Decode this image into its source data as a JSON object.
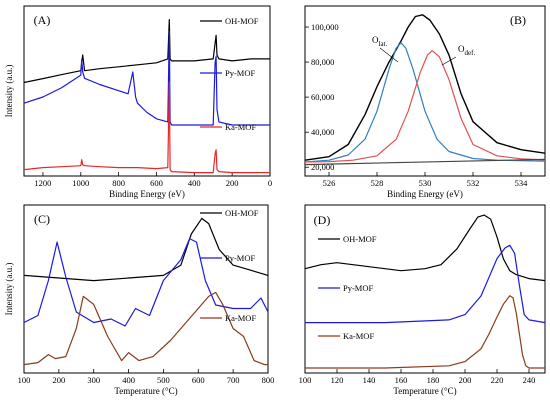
{
  "figure": {
    "colors": {
      "black": "#000000",
      "blue": "#1a1adf",
      "red": "#e8262a",
      "brown": "#8b3a1a",
      "fitblue": "#2f7fc1",
      "fitred": "#e25050",
      "baseline": "#444444"
    }
  },
  "chart_data": [
    {
      "panel": "(A)",
      "type": "line",
      "xlabel": "Binding Energy (eV)",
      "ylabel": "Intensity (a.u.)",
      "xlim": [
        1300,
        0
      ],
      "xticks": [
        "1200",
        "1000",
        "800",
        "600",
        "400",
        "200",
        "0"
      ],
      "xtick_values": [
        1200,
        1000,
        800,
        600,
        400,
        200,
        0
      ],
      "ylim": [
        0,
        10
      ],
      "legend_placement": "right of each curve",
      "series": [
        {
          "name": "OH-MOF",
          "color": "black",
          "x": [
            1300,
            1200,
            1100,
            1000,
            990,
            980,
            900,
            800,
            700,
            600,
            540,
            532,
            528,
            520,
            400,
            300,
            290,
            285,
            280,
            270,
            200,
            100,
            0
          ],
          "y": [
            8.3,
            8.4,
            8.5,
            8.6,
            9.0,
            8.6,
            8.65,
            8.7,
            8.75,
            8.8,
            8.9,
            9.9,
            8.9,
            8.85,
            8.85,
            8.9,
            9.3,
            9.5,
            9.0,
            8.9,
            8.85,
            8.9,
            8.9
          ]
        },
        {
          "name": "Py-MOF",
          "color": "blue",
          "x": [
            1300,
            1200,
            1100,
            1000,
            995,
            990,
            980,
            900,
            800,
            750,
            725,
            710,
            700,
            650,
            600,
            540,
            532,
            528,
            520,
            450,
            400,
            300,
            290,
            285,
            280,
            270,
            200,
            100,
            0
          ],
          "y": [
            5.6,
            5.8,
            6.1,
            6.5,
            7.0,
            6.6,
            6.4,
            6.2,
            6.0,
            5.9,
            6.6,
            5.8,
            5.6,
            5.3,
            5.1,
            5.0,
            7.9,
            5.0,
            4.9,
            4.9,
            4.9,
            4.9,
            6.9,
            7.1,
            5.4,
            5.0,
            4.9,
            4.9,
            4.9
          ]
        },
        {
          "name": "Ka-MOF",
          "color": "red",
          "x": [
            1300,
            1200,
            1100,
            1000,
            995,
            990,
            980,
            900,
            800,
            700,
            600,
            540,
            532,
            528,
            520,
            400,
            300,
            290,
            285,
            280,
            270,
            200,
            100,
            0
          ],
          "y": [
            2.6,
            2.7,
            2.75,
            2.8,
            3.1,
            2.85,
            2.8,
            2.75,
            2.7,
            2.7,
            2.65,
            2.7,
            7.0,
            2.6,
            2.5,
            2.45,
            2.45,
            3.4,
            3.6,
            2.6,
            2.5,
            2.45,
            2.45,
            2.45
          ]
        }
      ]
    },
    {
      "panel": "(B)",
      "type": "line",
      "xlabel": "Binding Energy (eV)",
      "xlim": [
        525,
        535
      ],
      "ylim": [
        15000,
        112000
      ],
      "xticks": [
        "526",
        "528",
        "530",
        "532",
        "534"
      ],
      "xtick_values": [
        526,
        528,
        530,
        532,
        534
      ],
      "yticks": [
        "20,000",
        "40,000",
        "60,000",
        "80,000",
        "100,000"
      ],
      "ytick_values": [
        20000,
        40000,
        60000,
        80000,
        100000
      ],
      "annotations": [
        {
          "text": "O",
          "sub": "lat."
        },
        {
          "text": "O",
          "sub": "def."
        }
      ],
      "series": [
        {
          "role": "envelope",
          "color": "black",
          "x": [
            525,
            526,
            526.8,
            527.5,
            528,
            528.5,
            529,
            529.3,
            529.6,
            529.9,
            530.2,
            530.6,
            531,
            531.5,
            532,
            533,
            534,
            535
          ],
          "y": [
            24000,
            26000,
            33000,
            50000,
            66000,
            80000,
            92000,
            100000,
            106000,
            107000,
            104000,
            96000,
            84000,
            62000,
            46000,
            34000,
            30000,
            28000
          ]
        },
        {
          "role": "O lat. fit",
          "color": "fitblue",
          "x": [
            525,
            526,
            526.8,
            527.5,
            528,
            528.5,
            528.8,
            529.0,
            529.2,
            529.5,
            530,
            530.5,
            531,
            532,
            533,
            535
          ],
          "y": [
            23000,
            24000,
            27000,
            36000,
            52000,
            76000,
            88000,
            91000,
            88000,
            76000,
            52000,
            36000,
            29000,
            25000,
            24000,
            23500
          ]
        },
        {
          "role": "O def. fit",
          "color": "fitred",
          "x": [
            525,
            526,
            527,
            528,
            528.8,
            529.3,
            529.8,
            530.1,
            530.3,
            530.6,
            531,
            531.5,
            532,
            533,
            534,
            535
          ],
          "y": [
            23000,
            23200,
            24000,
            26500,
            36000,
            52000,
            74000,
            84000,
            86500,
            83000,
            70000,
            48000,
            33000,
            26500,
            24800,
            24200
          ]
        },
        {
          "role": "baseline",
          "color": "baseline",
          "x": [
            525,
            535
          ],
          "y": [
            21500,
            24500
          ]
        }
      ]
    },
    {
      "panel": "(C)",
      "type": "line",
      "xlabel": "Temperature (°C)",
      "ylabel": "Intensity (a.u.)",
      "xlim": [
        100,
        800
      ],
      "xticks": [
        "100",
        "200",
        "300",
        "400",
        "500",
        "600",
        "700",
        "800"
      ],
      "xtick_values": [
        100,
        200,
        300,
        400,
        500,
        600,
        700,
        800
      ],
      "ylim": [
        0,
        10
      ],
      "series": [
        {
          "name": "OH-MOF",
          "color": "black",
          "x": [
            100,
            200,
            300,
            400,
            500,
            550,
            580,
            610,
            630,
            660,
            700,
            750,
            800
          ],
          "y": [
            7.5,
            7.45,
            7.4,
            7.45,
            7.5,
            7.7,
            8.3,
            8.6,
            8.5,
            8.0,
            7.7,
            7.6,
            7.5
          ]
        },
        {
          "name": "Py-MOF",
          "color": "blue",
          "x": [
            100,
            140,
            170,
            195,
            220,
            250,
            300,
            350,
            390,
            420,
            460,
            500,
            550,
            575,
            595,
            620,
            650,
            700,
            750,
            780,
            800
          ],
          "y": [
            3.1,
            3.3,
            4.3,
            5.4,
            4.4,
            3.4,
            3.1,
            3.2,
            3.0,
            3.5,
            3.3,
            4.3,
            4.9,
            5.5,
            5.4,
            4.3,
            3.6,
            3.5,
            3.5,
            3.8,
            3.4
          ]
        },
        {
          "name": "Ka-MOF",
          "color": "brown",
          "x": [
            100,
            140,
            170,
            190,
            220,
            250,
            270,
            300,
            340,
            380,
            400,
            430,
            470,
            520,
            570,
            600,
            630,
            650,
            670,
            700,
            730,
            760,
            790,
            800
          ],
          "y": [
            0.3,
            0.35,
            0.55,
            0.45,
            0.5,
            1.2,
            2.0,
            1.8,
            1.0,
            0.4,
            0.6,
            0.4,
            0.5,
            0.9,
            1.4,
            1.7,
            2.0,
            2.1,
            1.8,
            1.2,
            1.0,
            0.4,
            0.3,
            0.3
          ]
        }
      ]
    },
    {
      "panel": "(D)",
      "type": "line",
      "xlabel": "Temperature (°C)",
      "xlim": [
        100,
        250
      ],
      "xticks": [
        "100",
        "120",
        "140",
        "160",
        "180",
        "200",
        "220",
        "240"
      ],
      "xtick_values": [
        100,
        120,
        140,
        160,
        180,
        200,
        220,
        240
      ],
      "ylim": [
        0,
        10
      ],
      "series": [
        {
          "name": "OH-MOF",
          "color": "black",
          "x": [
            100,
            110,
            120,
            130,
            140,
            160,
            175,
            185,
            195,
            203,
            208,
            212,
            216,
            220,
            224,
            228,
            232,
            240,
            250
          ],
          "y": [
            7.0,
            7.2,
            7.3,
            7.2,
            7.1,
            6.9,
            7.0,
            7.2,
            8.0,
            9.0,
            9.6,
            9.7,
            9.5,
            8.6,
            7.5,
            6.9,
            6.7,
            6.5,
            6.4
          ]
        },
        {
          "name": "Py-MOF",
          "color": "blue",
          "x": [
            100,
            150,
            190,
            200,
            210,
            215,
            220,
            225,
            228,
            231,
            234,
            237,
            240,
            250
          ],
          "y": [
            3.6,
            3.6,
            3.7,
            3.9,
            4.6,
            5.3,
            6.0,
            6.4,
            6.5,
            6.2,
            5.0,
            3.9,
            3.7,
            3.6
          ]
        },
        {
          "name": "Ka-MOF",
          "color": "brown",
          "x": [
            100,
            150,
            190,
            200,
            210,
            215,
            220,
            224,
            228,
            230,
            232,
            234,
            236,
            238,
            240,
            250
          ],
          "y": [
            0.4,
            0.4,
            0.5,
            0.7,
            1.3,
            2.0,
            2.8,
            3.4,
            3.8,
            3.7,
            3.0,
            2.0,
            1.0,
            0.5,
            0.4,
            0.4
          ]
        }
      ]
    }
  ]
}
